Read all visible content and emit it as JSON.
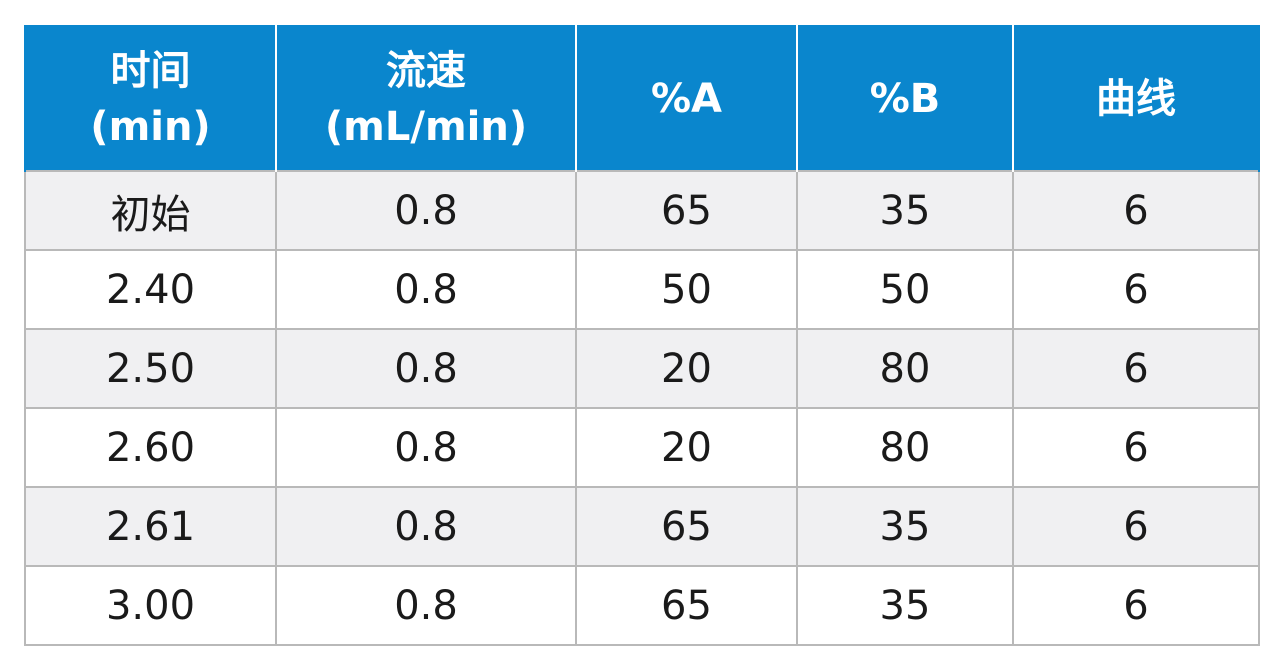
{
  "table": {
    "headers": [
      {
        "line1": "时间",
        "line2": "(min)"
      },
      {
        "line1": "流速",
        "line2": "(mL/min)"
      },
      {
        "line1": "%A",
        "line2": ""
      },
      {
        "line1": "%B",
        "line2": ""
      },
      {
        "line1": "曲线",
        "line2": ""
      }
    ],
    "rows": [
      [
        "初始",
        "0.8",
        "65",
        "35",
        "6"
      ],
      [
        "2.40",
        "0.8",
        "50",
        "50",
        "6"
      ],
      [
        "2.50",
        "0.8",
        "20",
        "80",
        "6"
      ],
      [
        "2.60",
        "0.8",
        "20",
        "80",
        "6"
      ],
      [
        "2.61",
        "0.8",
        "65",
        "35",
        "6"
      ],
      [
        "3.00",
        "0.8",
        "65",
        "35",
        "6"
      ]
    ]
  },
  "colors": {
    "header_bg": "#0a86cd",
    "header_text": "#ffffff",
    "row_alt_bg": "#f0f0f2",
    "border": "#b9b9b9"
  }
}
